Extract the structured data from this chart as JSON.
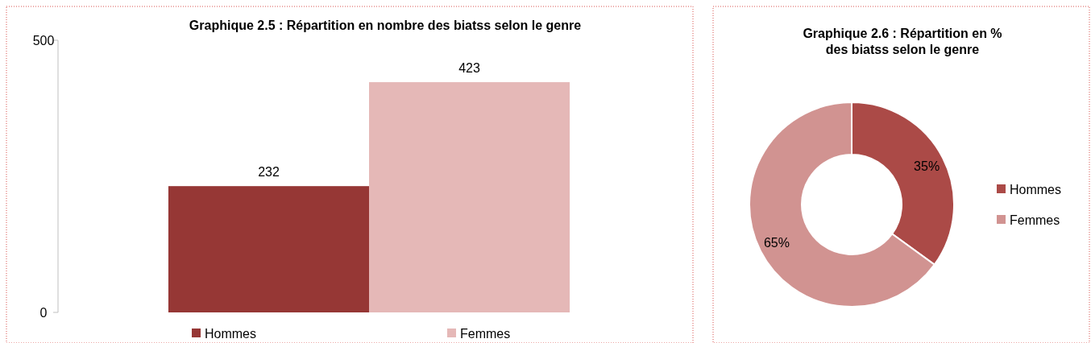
{
  "chart_data": [
    {
      "type": "bar",
      "title": "Graphique 2.5 : Répartition en nombre des biatss selon le genre",
      "categories": [
        null
      ],
      "series": [
        {
          "name": "Hommes",
          "color": "#963735",
          "values": [
            232
          ]
        },
        {
          "name": "Femmes",
          "color": "#e5b8b7",
          "values": [
            423
          ]
        }
      ],
      "ylim": [
        0,
        500
      ],
      "yticks": [
        0,
        500
      ],
      "data_labels": true,
      "legend": "bottom",
      "grid": false
    },
    {
      "type": "donut",
      "title": "Graphique 2.6 : Répartition en %\ndes biatss selon le genre",
      "categories": [
        "Hommes",
        "Femmes"
      ],
      "values": [
        35,
        65
      ],
      "value_labels": [
        "35%",
        "65%"
      ],
      "colors": [
        "#ab4a47",
        "#d19391"
      ],
      "legend": "right"
    }
  ]
}
